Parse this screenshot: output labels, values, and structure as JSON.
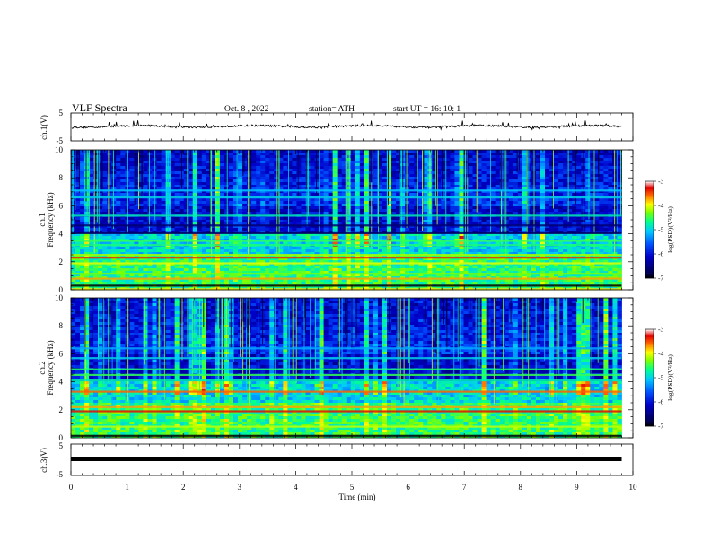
{
  "header": {
    "title": "VLF  Spectra",
    "date": "Oct. 8  , 2022",
    "station": "station= ATH",
    "start_ut": "start  UT  =    16: 10: 1"
  },
  "colormap": {
    "stops": [
      {
        "v": 0.0,
        "c": "#000000"
      },
      {
        "v": 0.05,
        "c": "#000050"
      },
      {
        "v": 0.22,
        "c": "#0000c8"
      },
      {
        "v": 0.35,
        "c": "#0050ff"
      },
      {
        "v": 0.48,
        "c": "#00c8ff"
      },
      {
        "v": 0.58,
        "c": "#00ff90"
      },
      {
        "v": 0.68,
        "c": "#80ff00"
      },
      {
        "v": 0.76,
        "c": "#ffff00"
      },
      {
        "v": 0.86,
        "c": "#ff6000"
      },
      {
        "v": 0.93,
        "c": "#e00000"
      },
      {
        "v": 1.0,
        "c": "#ffffff"
      }
    ]
  },
  "chart_data": [
    {
      "id": "ch1-waveform",
      "type": "line",
      "ylabel": "ch.1(V)",
      "ylim": [
        -5,
        5
      ],
      "yticks": [
        "5",
        "-5"
      ],
      "xlim": [
        0,
        10
      ],
      "series": [
        {
          "baseline": 0.2,
          "noise_amplitude": 0.7,
          "end": 9.8
        }
      ]
    },
    {
      "id": "ch1-spectrogram",
      "type": "heatmap",
      "ylabel": "ch.1\nFrequency  (kHz)",
      "xlim": [
        0,
        10
      ],
      "ylim": [
        0,
        10
      ],
      "yticks": [
        "0",
        "2",
        "4",
        "6",
        "8",
        "10"
      ],
      "data_end": 9.8,
      "colorbar": {
        "label": "log(PSD)(V²/Hz)",
        "range": [
          -7,
          -3
        ],
        "ticks": [
          "-3",
          "-4",
          "-5",
          "-6",
          "-7"
        ]
      },
      "bands": [
        {
          "f": 0.05,
          "level": 0.78
        },
        {
          "f": 0.3,
          "level": 0.0
        },
        {
          "f": 0.8,
          "level": 0.82
        },
        {
          "f": 1.15,
          "level": 0.68
        },
        {
          "f": 1.9,
          "level": 0.74
        },
        {
          "f": 2.3,
          "level": 0.9
        },
        {
          "f": 2.5,
          "level": 0.7
        },
        {
          "f": 3.2,
          "level": 0.6
        },
        {
          "f": 3.5,
          "level": 0.62
        },
        {
          "f": 4.05,
          "level": 0.08
        },
        {
          "f": 4.6,
          "level": 0.1
        },
        {
          "f": 5.3,
          "level": 0.55
        },
        {
          "f": 6.6,
          "level": 0.5
        },
        {
          "f": 7.1,
          "level": 0.48
        }
      ]
    },
    {
      "id": "ch2-spectrogram",
      "type": "heatmap",
      "ylabel": "ch.2\nFrequency  (kHz)",
      "xlim": [
        0,
        10
      ],
      "ylim": [
        0,
        10
      ],
      "yticks": [
        "0",
        "2",
        "4",
        "6",
        "8",
        "10"
      ],
      "data_end": 9.8,
      "colorbar": {
        "label": "log(PSD)(V²/Hz)",
        "range": [
          -7,
          -3
        ],
        "ticks": [
          "-3",
          "-4",
          "-5",
          "-6",
          "-7"
        ]
      },
      "bands": [
        {
          "f": 0.15,
          "level": 0.0
        },
        {
          "f": 0.8,
          "level": 0.72
        },
        {
          "f": 1.9,
          "level": 0.92
        },
        {
          "f": 2.2,
          "level": 0.82
        },
        {
          "f": 3.3,
          "level": 0.86
        },
        {
          "f": 4.1,
          "level": 0.55
        },
        {
          "f": 4.5,
          "level": 0.62
        },
        {
          "f": 4.9,
          "level": 0.6
        },
        {
          "f": 5.7,
          "level": 0.5
        },
        {
          "f": 6.4,
          "level": 0.45
        }
      ]
    },
    {
      "id": "ch3-waveform",
      "type": "line",
      "ylabel": "ch.3(V)",
      "ylim": [
        -5,
        5
      ],
      "yticks": [
        "5",
        "-5"
      ],
      "xlim": [
        0,
        10
      ],
      "xlabel": "Time  (min)",
      "xticks": [
        "0",
        "1",
        "2",
        "3",
        "4",
        "5",
        "6",
        "7",
        "8",
        "9",
        "10"
      ],
      "series": [
        {
          "baseline": 0.0,
          "noise_amplitude": 0.1,
          "end": 9.8
        }
      ]
    }
  ]
}
